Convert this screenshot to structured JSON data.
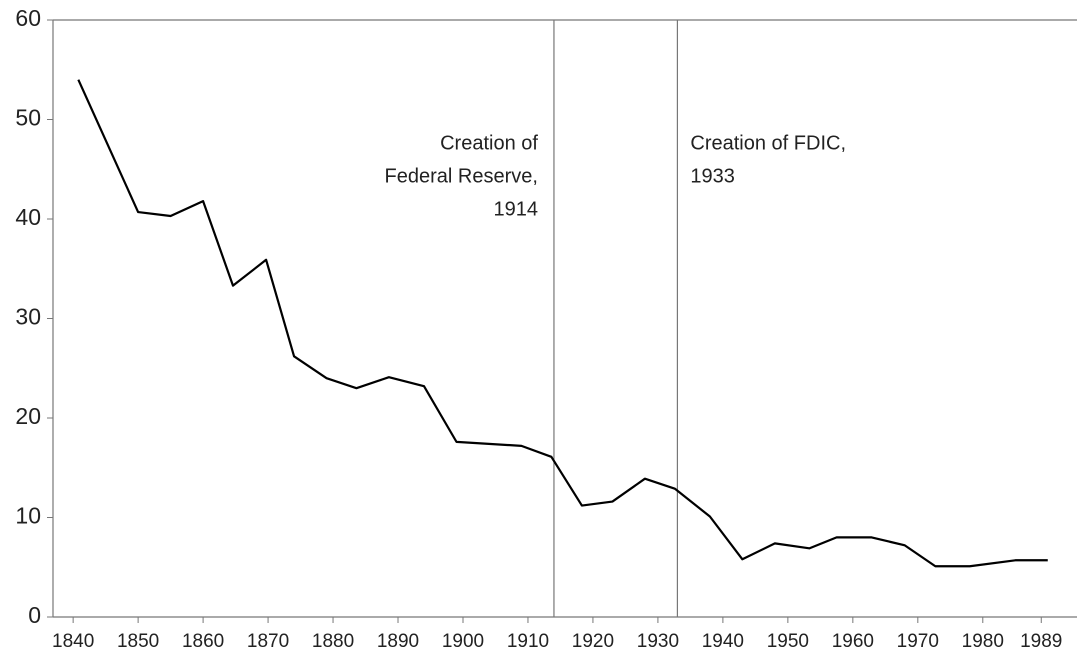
{
  "chart_data": {
    "type": "line",
    "x": [
      1840.8,
      1850,
      1855,
      1860,
      1864.6,
      1869.7,
      1874,
      1879,
      1883.6,
      1888.6,
      1894,
      1899,
      1909,
      1913.6,
      1918.3,
      1923,
      1928,
      1932.6,
      1938,
      1943,
      1948,
      1953.3,
      1957.5,
      1962.9,
      1968,
      1972.7,
      1978,
      1985,
      1990
    ],
    "series": [
      {
        "color": "#000000",
        "values": [
          54.0,
          40.7,
          40.3,
          41.8,
          33.3,
          35.9,
          26.2,
          24.0,
          23.0,
          24.1,
          23.2,
          17.6,
          17.2,
          16.1,
          11.2,
          11.6,
          13.9,
          12.9,
          10.1,
          5.8,
          7.4,
          6.9,
          8.0,
          8.0,
          7.2,
          5.1,
          5.1,
          5.7,
          5.7
        ]
      }
    ],
    "xlim": [
      1836.9,
      1994.5
    ],
    "ylim": [
      0,
      60
    ],
    "xticks": [
      1840,
      1850,
      1860,
      1870,
      1880,
      1890,
      1900,
      1910,
      1920,
      1930,
      1940,
      1950,
      1960,
      1970,
      1980,
      1989
    ],
    "yticks": [
      0,
      10,
      20,
      30,
      40,
      50,
      60
    ],
    "annotations": [
      {
        "x": 1914,
        "lines": [
          "Creation of",
          "Federal Reserve,",
          "1914"
        ],
        "align": "right"
      },
      {
        "x": 1933,
        "lines": [
          "Creation of FDIC,",
          "1933"
        ],
        "align": "left"
      }
    ]
  }
}
